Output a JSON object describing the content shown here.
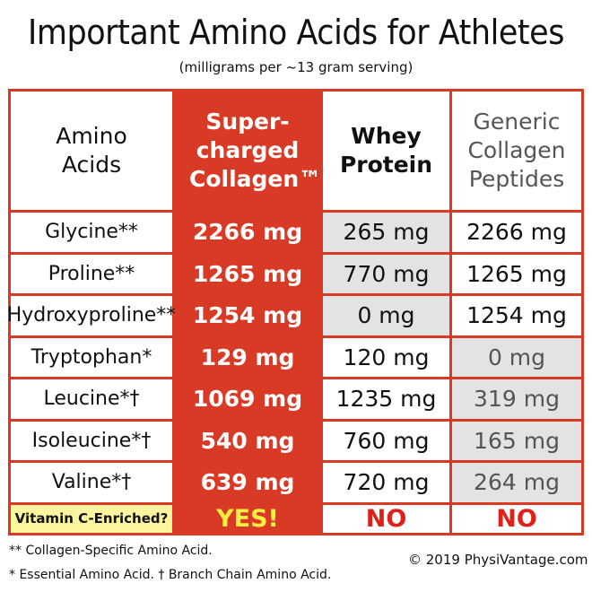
{
  "title": "Important Amino Acids for Athletes",
  "subtitle": "(milligrams per ~13 gram serving)",
  "colors": {
    "accent_red": "#d93a25",
    "grey_cell": "#e3e3e3",
    "yellow_cell": "#fbf59f",
    "yes_text": "#f6ee40",
    "no_text": "#e0211a"
  },
  "chart_data": {
    "type": "table",
    "unit": "mg",
    "columns": [
      "Amino Acids",
      "Super-charged Collagen™",
      "Whey Protein",
      "Generic Collagen Peptides"
    ],
    "rows": [
      {
        "name": "Glycine**",
        "values": [
          "2266 mg",
          "265 mg",
          "2266 mg"
        ]
      },
      {
        "name": "Proline**",
        "values": [
          "1265 mg",
          "770 mg",
          "1265 mg"
        ]
      },
      {
        "name": "Hydroxyproline**",
        "values": [
          "1254 mg",
          "0 mg",
          "1254 mg"
        ]
      },
      {
        "name": "Tryptophan*",
        "values": [
          "129 mg",
          "120 mg",
          "0 mg"
        ]
      },
      {
        "name": "Leucine*†",
        "values": [
          "1069 mg",
          "1235 mg",
          "319 mg"
        ]
      },
      {
        "name": "Isoleucine*†",
        "values": [
          "540 mg",
          "760 mg",
          "165 mg"
        ]
      },
      {
        "name": "Valine*†",
        "values": [
          "639 mg",
          "720 mg",
          "264 mg"
        ]
      }
    ],
    "numeric_values": {
      "Super-charged Collagen™": [
        2266,
        1265,
        1254,
        129,
        1069,
        540,
        639
      ],
      "Whey Protein": [
        265,
        770,
        0,
        120,
        1235,
        760,
        720
      ],
      "Generic Collagen Peptides": [
        2266,
        1265,
        1254,
        0,
        319,
        165,
        264
      ]
    },
    "shaded_cells": {
      "Whey Protein": [
        true,
        true,
        true,
        false,
        false,
        false,
        false
      ],
      "Generic Collagen Peptides": [
        false,
        false,
        false,
        true,
        true,
        true,
        true
      ]
    },
    "vitamin_row": {
      "name": "Vitamin C-Enriched?",
      "values": [
        "YES!",
        "NO",
        "NO"
      ]
    }
  },
  "footnotes": {
    "line1": "** Collagen-Specific Amino Acid.",
    "line2": "* Essential Amino Acid.  † Branch Chain Amino Acid.",
    "copyright": "© 2019 PhysiVantage.com"
  }
}
